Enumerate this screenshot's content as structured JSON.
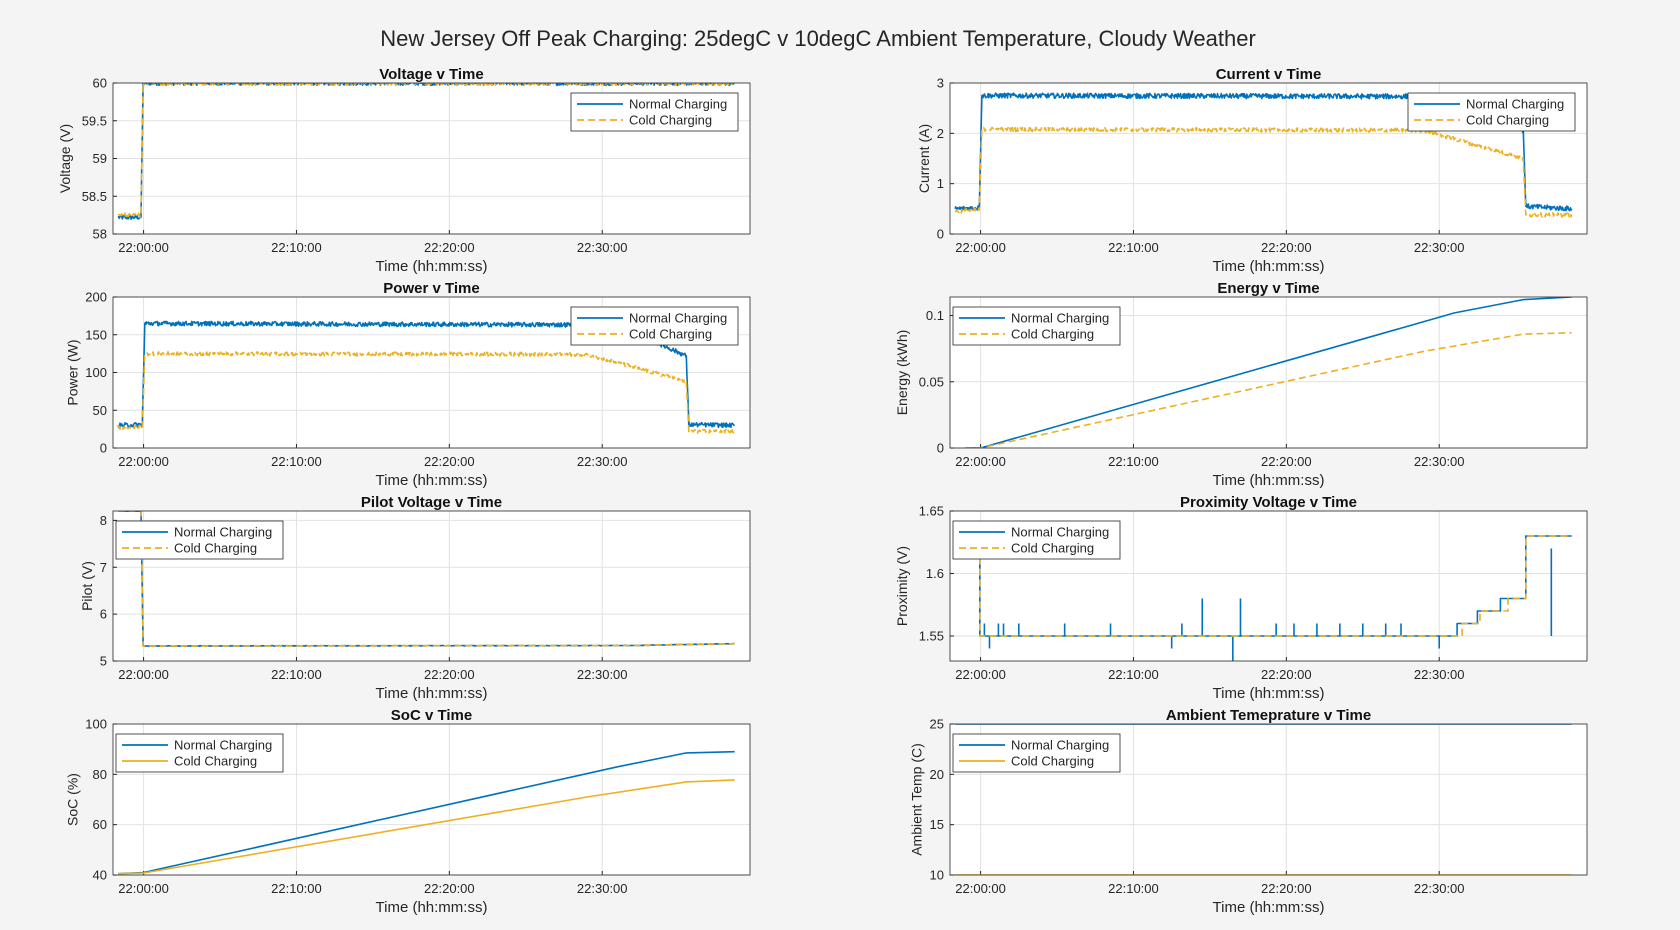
{
  "figure_title": "New Jersey Off Peak Charging: 25degC v 10degC Ambient Temperature, Cloudy Weather",
  "colors": {
    "normal": "#0072BD",
    "cold": "#EDB120",
    "axis_bg": "#ffffff",
    "grid": "#e2e2e2",
    "figure_bg": "#f4f4f4"
  },
  "chart_data": [
    {
      "id": "voltage",
      "type": "line",
      "title": "Voltage v Time",
      "xlabel": "Time (hh:mm:ss)",
      "ylabel": "Voltage (V)",
      "xlim": [
        "21:58:00",
        "22:39:40"
      ],
      "xticks": [
        "22:00:00",
        "22:10:00",
        "22:20:00",
        "22:30:00"
      ],
      "ylim": [
        58,
        60
      ],
      "yticks": [
        "58",
        "58.5",
        "59",
        "59.5",
        "60"
      ],
      "grid": true,
      "legend": "top-right",
      "series": [
        {
          "name": "Normal Charging",
          "style": "solid",
          "color": "#0072BD",
          "noise": 0.03,
          "points": [
            [
              "21:58:20",
              58.22
            ],
            [
              "21:59:50",
              58.22
            ],
            [
              "21:59:58",
              60
            ],
            [
              "22:38:40",
              60
            ]
          ]
        },
        {
          "name": "Cold Charging",
          "style": "dashed",
          "color": "#EDB120",
          "noise": 0.03,
          "points": [
            [
              "21:58:20",
              58.25
            ],
            [
              "21:59:50",
              58.25
            ],
            [
              "21:59:58",
              60
            ],
            [
              "22:38:40",
              60
            ]
          ]
        }
      ]
    },
    {
      "id": "current",
      "type": "line",
      "title": "Current v Time",
      "xlabel": "Time (hh:mm:ss)",
      "ylabel": "Current (A)",
      "xlim": [
        "21:58:00",
        "22:39:40"
      ],
      "xticks": [
        "22:00:00",
        "22:10:00",
        "22:20:00",
        "22:30:00"
      ],
      "ylim": [
        0,
        3
      ],
      "yticks": [
        "0",
        "1",
        "2",
        "3"
      ],
      "grid": true,
      "legend": "top-right",
      "series": [
        {
          "name": "Normal Charging",
          "style": "solid",
          "color": "#0072BD",
          "noise": 0.05,
          "points": [
            [
              "21:58:20",
              0.5
            ],
            [
              "21:59:55",
              0.52
            ],
            [
              "22:00:05",
              2.75
            ],
            [
              "22:33:00",
              2.73
            ],
            [
              "22:35:30",
              2.05
            ],
            [
              "22:35:40",
              0.55
            ],
            [
              "22:38:40",
              0.5
            ]
          ]
        },
        {
          "name": "Cold Charging",
          "style": "dashed",
          "color": "#EDB120",
          "noise": 0.04,
          "points": [
            [
              "21:58:20",
              0.45
            ],
            [
              "21:59:55",
              0.48
            ],
            [
              "22:00:05",
              2.08
            ],
            [
              "22:29:00",
              2.06
            ],
            [
              "22:35:30",
              1.5
            ],
            [
              "22:35:40",
              0.38
            ],
            [
              "22:38:40",
              0.38
            ]
          ]
        }
      ]
    },
    {
      "id": "power",
      "type": "line",
      "title": "Power v Time",
      "xlabel": "Time (hh:mm:ss)",
      "ylabel": "Power (W)",
      "xlim": [
        "21:58:00",
        "22:39:40"
      ],
      "xticks": [
        "22:00:00",
        "22:10:00",
        "22:20:00",
        "22:30:00"
      ],
      "ylim": [
        0,
        200
      ],
      "yticks": [
        "0",
        "50",
        "100",
        "150",
        "200"
      ],
      "grid": true,
      "legend": "top-right",
      "series": [
        {
          "name": "Normal Charging",
          "style": "solid",
          "color": "#0072BD",
          "noise": 3,
          "points": [
            [
              "21:58:20",
              30
            ],
            [
              "21:59:55",
              31
            ],
            [
              "22:00:05",
              165
            ],
            [
              "22:31:00",
              163
            ],
            [
              "22:35:30",
              122
            ],
            [
              "22:35:40",
              31
            ],
            [
              "22:38:40",
              30
            ]
          ]
        },
        {
          "name": "Cold Charging",
          "style": "dashed",
          "color": "#EDB120",
          "noise": 2.5,
          "points": [
            [
              "21:58:20",
              27
            ],
            [
              "21:59:55",
              28
            ],
            [
              "22:00:05",
              125
            ],
            [
              "22:29:00",
              124
            ],
            [
              "22:35:30",
              88
            ],
            [
              "22:35:40",
              22
            ],
            [
              "22:38:40",
              22
            ]
          ]
        }
      ]
    },
    {
      "id": "energy",
      "type": "line",
      "title": "Energy v Time",
      "xlabel": "Time (hh:mm:ss)",
      "ylabel": "Energy (kWh)",
      "xlim": [
        "21:58:00",
        "22:39:40"
      ],
      "xticks": [
        "22:00:00",
        "22:10:00",
        "22:20:00",
        "22:30:00"
      ],
      "ylim": [
        0,
        0.114
      ],
      "yticks": [
        "0",
        "0.05",
        "0.1"
      ],
      "ytick_values": [
        0,
        0.05,
        0.1
      ],
      "grid": true,
      "legend": "top-left",
      "series": [
        {
          "name": "Normal Charging",
          "style": "solid",
          "color": "#0072BD",
          "noise": 0,
          "points": [
            [
              "21:59:00",
              0
            ],
            [
              "22:00:00",
              0
            ],
            [
              "22:31:00",
              0.102
            ],
            [
              "22:35:30",
              0.112
            ],
            [
              "22:38:40",
              0.114
            ]
          ]
        },
        {
          "name": "Cold Charging",
          "style": "dashed",
          "color": "#EDB120",
          "noise": 0,
          "points": [
            [
              "21:59:00",
              0
            ],
            [
              "22:00:00",
              0
            ],
            [
              "22:29:00",
              0.073
            ],
            [
              "22:35:30",
              0.086
            ],
            [
              "22:38:40",
              0.087
            ]
          ]
        }
      ]
    },
    {
      "id": "pilot",
      "type": "line",
      "title": "Pilot Voltage v Time",
      "xlabel": "Time (hh:mm:ss)",
      "ylabel": "Pilot (V)",
      "xlim": [
        "21:58:00",
        "22:39:40"
      ],
      "xticks": [
        "22:00:00",
        "22:10:00",
        "22:20:00",
        "22:30:00"
      ],
      "ylim": [
        5,
        8.2
      ],
      "yticks": [
        "5",
        "6",
        "7",
        "8"
      ],
      "ytick_values": [
        5,
        6,
        7,
        8
      ],
      "grid": true,
      "legend": "top-left",
      "series": [
        {
          "name": "Normal Charging",
          "style": "solid",
          "color": "#0072BD",
          "noise": 0.005,
          "points": [
            [
              "21:58:20",
              8.2
            ],
            [
              "21:59:50",
              8.2
            ],
            [
              "21:59:58",
              5.32
            ],
            [
              "22:32:00",
              5.33
            ],
            [
              "22:35:00",
              5.35
            ],
            [
              "22:38:40",
              5.37
            ]
          ]
        },
        {
          "name": "Cold Charging",
          "style": "dashed",
          "color": "#EDB120",
          "noise": 0.005,
          "points": [
            [
              "21:58:20",
              8.2
            ],
            [
              "21:59:50",
              8.2
            ],
            [
              "21:59:58",
              5.32
            ],
            [
              "22:32:00",
              5.33
            ],
            [
              "22:35:00",
              5.35
            ],
            [
              "22:38:40",
              5.37
            ]
          ]
        }
      ]
    },
    {
      "id": "proximity",
      "type": "line",
      "title": "Proximity Voltage v Time",
      "xlabel": "Time (hh:mm:ss)",
      "ylabel": "Proximity (V)",
      "xlim": [
        "21:58:00",
        "22:39:40"
      ],
      "xticks": [
        "22:00:00",
        "22:10:00",
        "22:20:00",
        "22:30:00"
      ],
      "ylim": [
        1.53,
        1.65
      ],
      "yticks": [
        "1.55",
        "1.6",
        "1.65"
      ],
      "ytick_values": [
        1.55,
        1.6,
        1.65
      ],
      "grid": true,
      "legend": "top-left",
      "series": [
        {
          "name": "Normal Charging",
          "style": "solid",
          "color": "#0072BD",
          "noise": 0,
          "step": true,
          "points": [
            [
              "21:59:55",
              1.63
            ],
            [
              "21:59:57",
              1.55
            ],
            [
              "22:31:00",
              1.55
            ],
            [
              "22:31:10",
              1.56
            ],
            [
              "22:32:30",
              1.57
            ],
            [
              "22:34:00",
              1.58
            ],
            [
              "22:35:40",
              1.63
            ],
            [
              "22:38:40",
              1.63
            ]
          ],
          "spikes": [
            [
              "22:00:15",
              1.56
            ],
            [
              "22:00:35",
              1.54
            ],
            [
              "22:01:10",
              1.56
            ],
            [
              "22:01:30",
              1.56
            ],
            [
              "22:02:30",
              1.56
            ],
            [
              "22:05:30",
              1.56
            ],
            [
              "22:08:30",
              1.56
            ],
            [
              "22:12:30",
              1.54
            ],
            [
              "22:13:10",
              1.56
            ],
            [
              "22:14:30",
              1.58
            ],
            [
              "22:16:30",
              1.53
            ],
            [
              "22:17:00",
              1.58
            ],
            [
              "22:19:20",
              1.56
            ],
            [
              "22:20:30",
              1.56
            ],
            [
              "22:22:00",
              1.56
            ],
            [
              "22:23:30",
              1.56
            ],
            [
              "22:25:00",
              1.56
            ],
            [
              "22:26:30",
              1.56
            ],
            [
              "22:27:30",
              1.56
            ],
            [
              "22:30:00",
              1.54
            ],
            [
              "22:37:20",
              1.62
            ]
          ]
        },
        {
          "name": "Cold Charging",
          "style": "dashed",
          "color": "#EDB120",
          "noise": 0,
          "step": true,
          "points": [
            [
              "21:59:55",
              1.63
            ],
            [
              "21:59:57",
              1.55
            ],
            [
              "22:31:20",
              1.55
            ],
            [
              "22:31:30",
              1.56
            ],
            [
              "22:32:40",
              1.57
            ],
            [
              "22:34:30",
              1.58
            ],
            [
              "22:35:40",
              1.63
            ],
            [
              "22:38:40",
              1.63
            ]
          ]
        }
      ]
    },
    {
      "id": "soc",
      "type": "line",
      "title": "SoC v Time",
      "xlabel": "Time (hh:mm:ss)",
      "ylabel": "SoC (%)",
      "xlim": [
        "21:58:00",
        "22:39:40"
      ],
      "xticks": [
        "22:00:00",
        "22:10:00",
        "22:20:00",
        "22:30:00"
      ],
      "ylim": [
        40,
        100
      ],
      "yticks": [
        "40",
        "60",
        "80",
        "100"
      ],
      "grid": true,
      "legend": "top-left",
      "series": [
        {
          "name": "Normal Charging",
          "style": "solid",
          "color": "#0072BD",
          "noise": 0,
          "points": [
            [
              "21:58:20",
              40.5
            ],
            [
              "22:00:00",
              41
            ],
            [
              "22:31:00",
              83
            ],
            [
              "22:35:30",
              88.5
            ],
            [
              "22:38:40",
              89
            ]
          ]
        },
        {
          "name": "Cold Charging",
          "style": "solid",
          "color": "#EDB120",
          "noise": 0,
          "points": [
            [
              "21:58:20",
              40.5
            ],
            [
              "22:00:00",
              40.8
            ],
            [
              "22:29:00",
              71
            ],
            [
              "22:35:30",
              77
            ],
            [
              "22:38:40",
              77.8
            ]
          ]
        }
      ]
    },
    {
      "id": "temp",
      "type": "line",
      "title": "Ambient Temeprature v Time",
      "xlabel": "Time (hh:mm:ss)",
      "ylabel": "Ambient Temp (C)",
      "xlim": [
        "21:58:00",
        "22:39:40"
      ],
      "xticks": [
        "22:00:00",
        "22:10:00",
        "22:20:00",
        "22:30:00"
      ],
      "ylim": [
        10,
        25
      ],
      "yticks": [
        "10",
        "15",
        "20",
        "25"
      ],
      "grid": true,
      "legend": "top-left",
      "series": [
        {
          "name": "Normal Charging",
          "style": "solid",
          "color": "#0072BD",
          "noise": 0,
          "points": [
            [
              "21:58:20",
              25
            ],
            [
              "22:38:40",
              25
            ]
          ]
        },
        {
          "name": "Cold Charging",
          "style": "solid",
          "color": "#EDB120",
          "noise": 0,
          "points": [
            [
              "21:58:20",
              10
            ],
            [
              "22:38:40",
              10
            ]
          ]
        }
      ]
    }
  ]
}
